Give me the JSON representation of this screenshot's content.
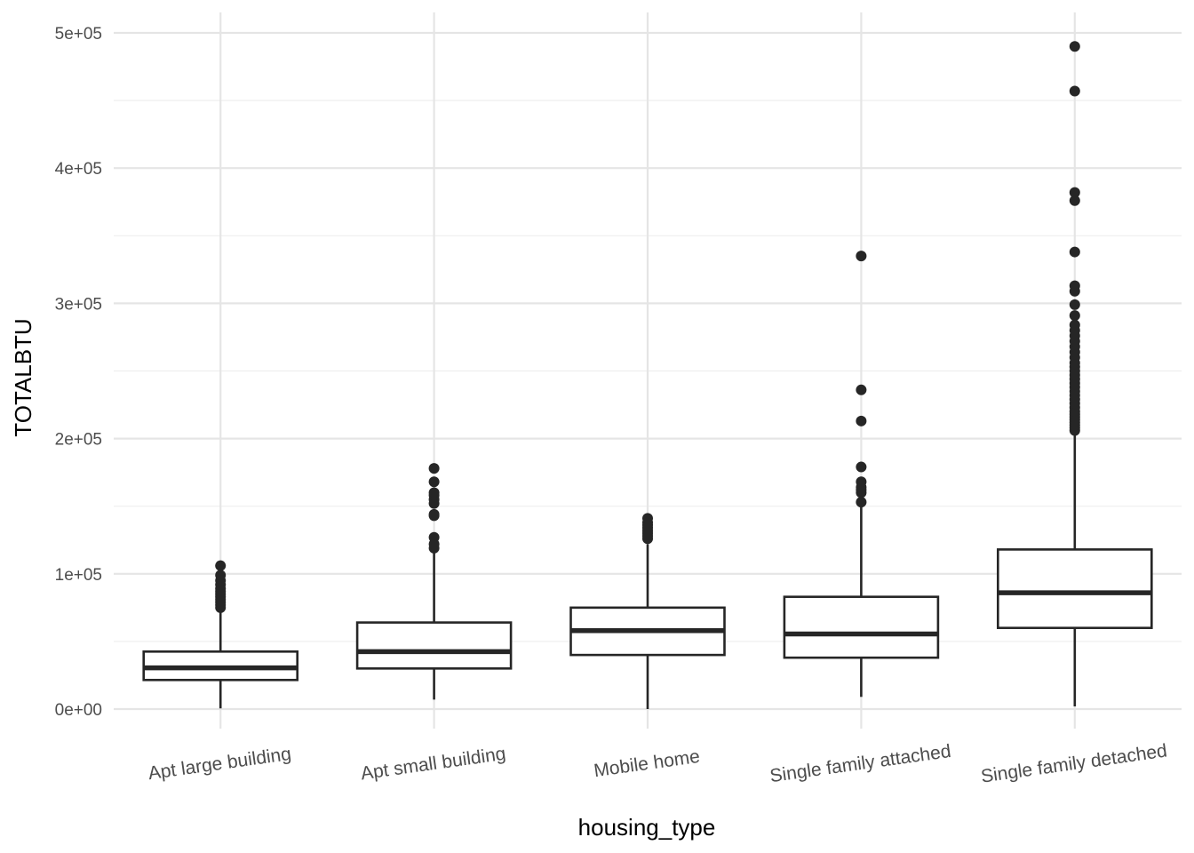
{
  "chart_data": {
    "type": "boxplot",
    "xlabel": "housing_type",
    "ylabel": "TOTALBTU",
    "ylim": [
      -15000,
      515000
    ],
    "y_ticks": [
      {
        "value": 0,
        "label": "0e+00"
      },
      {
        "value": 100000,
        "label": "1e+05"
      },
      {
        "value": 200000,
        "label": "2e+05"
      },
      {
        "value": 300000,
        "label": "3e+05"
      },
      {
        "value": 400000,
        "label": "4e+05"
      },
      {
        "value": 500000,
        "label": "5e+05"
      }
    ],
    "y_minor_ticks": [
      50000,
      150000,
      250000,
      350000,
      450000
    ],
    "grid": true,
    "categories": [
      "Apt large building",
      "Apt small building",
      "Mobile home",
      "Single family attached",
      "Single family detached"
    ],
    "boxes": [
      {
        "category": "Apt large building",
        "min": 500,
        "q1": 21500,
        "median": 30500,
        "q3": 42500,
        "max": 73500,
        "outliers": [
          75000,
          77000,
          79000,
          81000,
          83000,
          85000,
          87000,
          89000,
          92000,
          95000,
          99000,
          106000
        ]
      },
      {
        "category": "Apt small building",
        "min": 7000,
        "q1": 30000,
        "median": 42500,
        "q3": 64000,
        "max": 117000,
        "outliers": [
          119000,
          122000,
          127000,
          143000,
          144000,
          152000,
          155000,
          158000,
          160000,
          168000,
          178000
        ]
      },
      {
        "category": "Mobile home",
        "min": 0,
        "q1": 40000,
        "median": 58000,
        "q3": 75000,
        "max": 122000,
        "outliers": [
          126000,
          128000,
          130000,
          132000,
          134000,
          136000,
          138000,
          141000
        ]
      },
      {
        "category": "Single family attached",
        "min": 9000,
        "q1": 38000,
        "median": 55500,
        "q3": 83000,
        "max": 151000,
        "outliers": [
          153000,
          160000,
          162000,
          164000,
          168000,
          179000,
          213000,
          236000,
          335000
        ]
      },
      {
        "category": "Single family detached",
        "min": 2000,
        "q1": 60000,
        "median": 86000,
        "q3": 118000,
        "max": 204000,
        "outliers": [
          206000,
          208000,
          210000,
          212000,
          214000,
          216000,
          218000,
          220000,
          223000,
          226000,
          229000,
          232000,
          235000,
          238000,
          241000,
          244000,
          247000,
          250000,
          253000,
          256000,
          260000,
          264000,
          268000,
          272000,
          276000,
          280000,
          284000,
          291000,
          299000,
          309000,
          313000,
          338000,
          376000,
          382000,
          457000,
          490000
        ]
      }
    ]
  }
}
